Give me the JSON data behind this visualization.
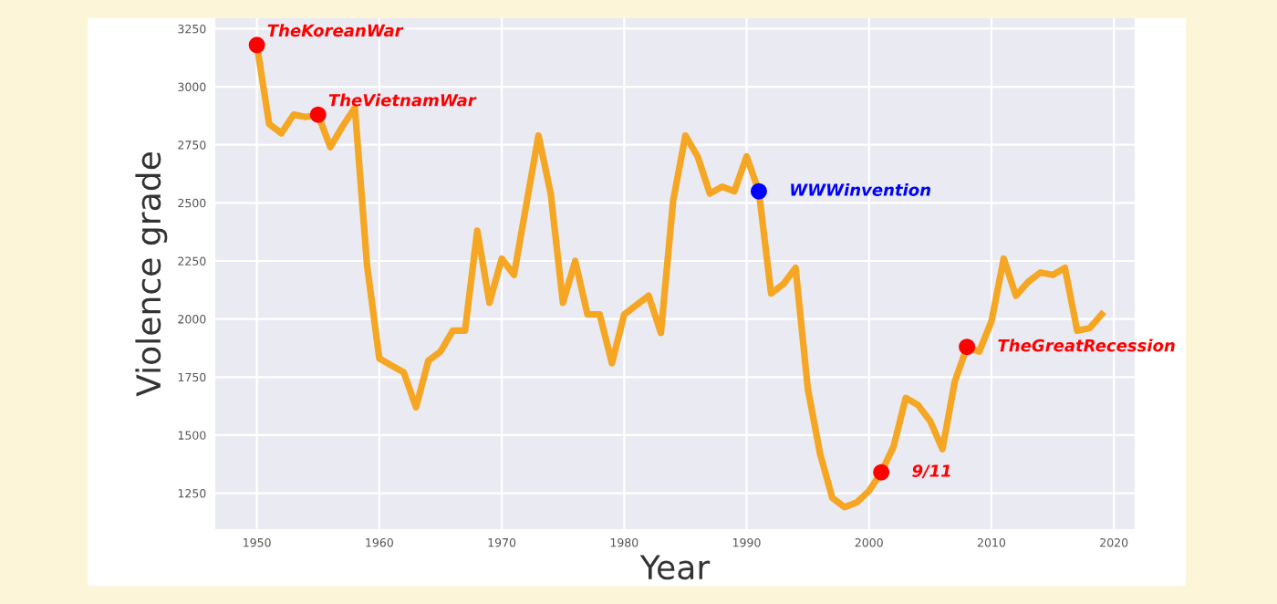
{
  "chart_data": {
    "type": "line",
    "xlabel": "Year",
    "ylabel": "Violence grade",
    "xlim": [
      1946.6,
      2021.7
    ],
    "ylim": [
      1095,
      3295
    ],
    "xticks": [
      1950,
      1960,
      1970,
      1980,
      1990,
      2000,
      2010,
      2020
    ],
    "yticks": [
      1250,
      1500,
      1750,
      2000,
      2250,
      2500,
      2750,
      3000,
      3250
    ],
    "grid": true,
    "series": [
      {
        "color": "#f5a623",
        "x": [
          1950,
          1951,
          1952,
          1953,
          1954,
          1955,
          1956,
          1957,
          1958,
          1959,
          1960,
          1961,
          1962,
          1963,
          1964,
          1965,
          1966,
          1967,
          1968,
          1969,
          1970,
          1971,
          1972,
          1973,
          1974,
          1975,
          1976,
          1977,
          1978,
          1979,
          1980,
          1981,
          1982,
          1983,
          1984,
          1985,
          1986,
          1987,
          1988,
          1989,
          1990,
          1991,
          1992,
          1993,
          1994,
          1995,
          1996,
          1997,
          1998,
          1999,
          2000,
          2001,
          2002,
          2003,
          2004,
          2005,
          2006,
          2007,
          2008,
          2009,
          2010,
          2011,
          2012,
          2013,
          2014,
          2015,
          2016,
          2017,
          2018,
          2019
        ],
        "values": [
          3180,
          2840,
          2800,
          2880,
          2870,
          2880,
          2740,
          2830,
          2910,
          2230,
          1830,
          1800,
          1770,
          1620,
          1820,
          1860,
          1950,
          1950,
          2380,
          2070,
          2260,
          2190,
          2490,
          2790,
          2540,
          2070,
          2250,
          2020,
          2020,
          1810,
          2020,
          2060,
          2100,
          1940,
          2510,
          2790,
          2700,
          2540,
          2570,
          2550,
          2700,
          2550,
          2110,
          2150,
          2220,
          1700,
          1420,
          1230,
          1190,
          1210,
          1260,
          1340,
          1450,
          1660,
          1630,
          1560,
          1440,
          1730,
          1880,
          1860,
          1990,
          2260,
          2100,
          2160,
          2200,
          2190,
          2220,
          1950,
          1960,
          2020
        ]
      },
      {
        "type": "scatter",
        "marker": "circle",
        "color": "#ff0000",
        "x": [
          1950,
          1955,
          2001,
          2008
        ],
        "values": [
          3180,
          2880,
          1340,
          1880
        ]
      },
      {
        "type": "scatter",
        "marker": "circle",
        "color": "#0000ff",
        "x": [
          1991
        ],
        "values": [
          2550
        ]
      }
    ],
    "annotations": [
      {
        "text": "TheKoreanWar",
        "x": 1950,
        "y": 3180
      },
      {
        "text": "TheVietnamWar",
        "x": 1955,
        "y": 2880
      },
      {
        "text": "WWWinvention",
        "x": 1991,
        "y": 2550
      },
      {
        "text": "9/11",
        "x": 2001,
        "y": 1340
      },
      {
        "text": "TheGreatRecession",
        "x": 2008,
        "y": 1880
      }
    ]
  }
}
